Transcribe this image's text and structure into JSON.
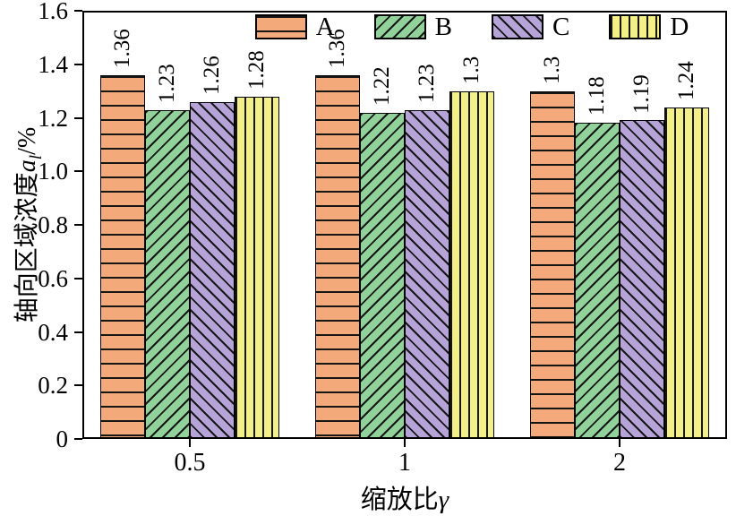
{
  "figure": {
    "background": "#ffffff",
    "axis_color": "#000000"
  },
  "chart_data": {
    "type": "bar",
    "title": "",
    "xlabel": "缩放比γ",
    "ylabel": "轴向区域浓度al/%",
    "xlabel_parts": {
      "text": "缩放比",
      "var": "γ"
    },
    "ylabel_parts": {
      "prefix": "轴向区域浓度",
      "var": "a",
      "sub": "l",
      "suffix": "/%"
    },
    "categories": [
      "0.5",
      "1",
      "2"
    ],
    "series": [
      {
        "name": "A",
        "color": "#F4A97A",
        "hatch": "-",
        "values": [
          1.36,
          1.36,
          1.3
        ],
        "value_labels": [
          "1.36",
          "1.36",
          "1.3"
        ]
      },
      {
        "name": "B",
        "color": "#90D29A",
        "hatch": "/",
        "values": [
          1.23,
          1.22,
          1.18
        ],
        "value_labels": [
          "1.23",
          "1.22",
          "1.18"
        ]
      },
      {
        "name": "C",
        "color": "#B6A3D8",
        "hatch": "\\",
        "values": [
          1.26,
          1.23,
          1.19
        ],
        "value_labels": [
          "1.26",
          "1.23",
          "1.19"
        ]
      },
      {
        "name": "D",
        "color": "#F2F087",
        "hatch": "|",
        "values": [
          1.28,
          1.3,
          1.24
        ],
        "value_labels": [
          "1.28",
          "1.3",
          "1.24"
        ]
      }
    ],
    "ylim": [
      0,
      1.6
    ],
    "yticks": [
      {
        "value": 0.0,
        "label": "0"
      },
      {
        "value": 0.2,
        "label": "0.2"
      },
      {
        "value": 0.4,
        "label": "0.4"
      },
      {
        "value": 0.6,
        "label": "0.6"
      },
      {
        "value": 0.8,
        "label": "0.8"
      },
      {
        "value": 1.0,
        "label": "1.0"
      },
      {
        "value": 1.2,
        "label": "1.2"
      },
      {
        "value": 1.4,
        "label": "1.4"
      },
      {
        "value": 1.6,
        "label": "1.6"
      }
    ],
    "grid": false,
    "legend_position": "top-center-inside"
  }
}
